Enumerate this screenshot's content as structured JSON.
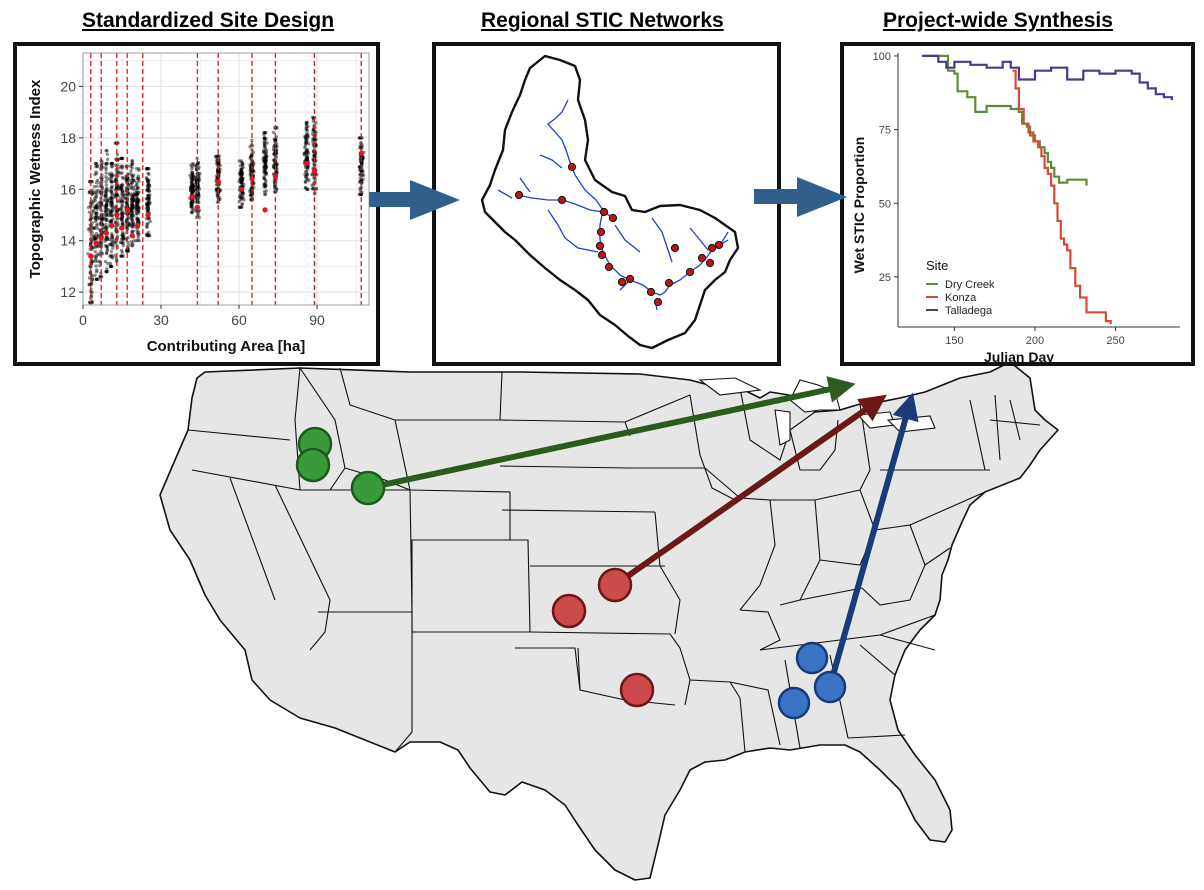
{
  "colors": {
    "dry_creek": "#3a9a3a",
    "dry_creek_arrow": "#2d5a1e",
    "konza": "#cc4a4a",
    "konza_arrow": "#6b1818",
    "talladega": "#3a72c4",
    "talladega_arrow": "#1a3a7a",
    "flow_arrow": "#2f5f8a",
    "stream": "#1f3fd0",
    "map_fill": "#e6e6e6"
  },
  "panels": {
    "site_design": {
      "title": "Standardized Site Design"
    },
    "networks": {
      "title": "Regional STIC Networks"
    },
    "synthesis": {
      "title": "Project-wide Synthesis"
    }
  },
  "chart_data": [
    {
      "type": "scatter",
      "xlabel": "Contributing Area [ha]",
      "ylabel": "Topographic Wetness Index",
      "xlim": [
        0,
        110
      ],
      "ylim": [
        11.5,
        21.3
      ],
      "xticks": [
        "0",
        "30",
        "60",
        "90"
      ],
      "yticks": [
        "12",
        "14",
        "16",
        "18",
        "20"
      ],
      "reference_lines_x": [
        3,
        7,
        13,
        17,
        23,
        44,
        52,
        65,
        74,
        89,
        107
      ],
      "clusters": [
        {
          "x": 3,
          "y_min": 11.6,
          "y_max": 16.3,
          "selected_y": 13.4
        },
        {
          "x": 5,
          "y_min": 12.5,
          "y_max": 17.0,
          "selected_y": 13.9
        },
        {
          "x": 7,
          "y_min": 12.6,
          "y_max": 17.1,
          "selected_y": 14.1
        },
        {
          "x": 9,
          "y_min": 12.8,
          "y_max": 17.5,
          "selected_y": 14.3
        },
        {
          "x": 11,
          "y_min": 13.0,
          "y_max": 17.0,
          "selected_y": 14.6
        },
        {
          "x": 13,
          "y_min": 13.2,
          "y_max": 17.8,
          "selected_y": 15.0
        },
        {
          "x": 15,
          "y_min": 13.4,
          "y_max": 17.2,
          "selected_y": 14.5
        },
        {
          "x": 17,
          "y_min": 13.6,
          "y_max": 16.9,
          "selected_y": 15.2
        },
        {
          "x": 19,
          "y_min": 13.8,
          "y_max": 17.1,
          "selected_y": 14.2
        },
        {
          "x": 21,
          "y_min": 14.0,
          "y_max": 16.8,
          "selected_y": 14.6
        },
        {
          "x": 25,
          "y_min": 14.2,
          "y_max": 16.8,
          "selected_y": 15.0
        },
        {
          "x": 42,
          "y_min": 15.1,
          "y_max": 17.0,
          "selected_y": 15.7
        },
        {
          "x": 44,
          "y_min": 14.9,
          "y_max": 17.2,
          "selected_y": 15.3
        },
        {
          "x": 52,
          "y_min": 15.5,
          "y_max": 17.3,
          "selected_y": 16.3
        },
        {
          "x": 61,
          "y_min": 15.3,
          "y_max": 17.1,
          "selected_y": 16.0
        },
        {
          "x": 65,
          "y_min": 15.6,
          "y_max": 17.9,
          "selected_y": 16.4
        },
        {
          "x": 70,
          "y_min": 15.8,
          "y_max": 18.2,
          "selected_y": 15.2
        },
        {
          "x": 74,
          "y_min": 15.9,
          "y_max": 18.4,
          "selected_y": 16.5
        },
        {
          "x": 86,
          "y_min": 16.0,
          "y_max": 18.6,
          "selected_y": 17.0
        },
        {
          "x": 89,
          "y_min": 15.8,
          "y_max": 18.8,
          "selected_y": 16.7
        },
        {
          "x": 107,
          "y_min": 15.8,
          "y_max": 18.0,
          "selected_y": 17.4
        }
      ]
    },
    {
      "type": "line",
      "xlabel": "Julian Day",
      "ylabel": "Wet STIC Proportion",
      "xlim": [
        115,
        290
      ],
      "ylim": [
        8,
        101
      ],
      "xticks": [
        "150",
        "200",
        "250"
      ],
      "yticks": [
        "25",
        "50",
        "75",
        "100"
      ],
      "legend_title": "Site",
      "legend_position": "lower-left",
      "series": [
        {
          "name": "Dry Creek",
          "color": "#5e8c3a",
          "x": [
            130,
            143,
            146,
            150,
            152,
            158,
            160,
            163,
            165,
            170,
            175,
            180,
            185,
            190,
            192,
            195,
            197,
            200,
            203,
            206,
            208,
            210,
            212,
            215,
            220,
            225,
            230,
            232
          ],
          "y": [
            100,
            100,
            95,
            94,
            88,
            86,
            86,
            81,
            81,
            83,
            83,
            83,
            82,
            81,
            77,
            76,
            73,
            71,
            69,
            67,
            64,
            62,
            59,
            57,
            58,
            58,
            58,
            56
          ]
        },
        {
          "name": "Konza",
          "color": "#d64b34",
          "x": [
            186,
            188,
            190,
            193,
            196,
            199,
            202,
            204,
            206,
            208,
            210,
            212,
            214,
            216,
            218,
            220,
            222,
            225,
            228,
            232,
            236,
            240,
            244,
            247
          ],
          "y": [
            95,
            89,
            82,
            77,
            74,
            71,
            69,
            66,
            62,
            60,
            56,
            50,
            44,
            38,
            36,
            34,
            28,
            22,
            18,
            13,
            13,
            13,
            10,
            9
          ]
        },
        {
          "name": "Talladega",
          "color": "#4b3a8c",
          "x": [
            130,
            140,
            145,
            150,
            160,
            170,
            180,
            185,
            190,
            200,
            210,
            220,
            230,
            240,
            250,
            260,
            265,
            270,
            275,
            280,
            285
          ],
          "y": [
            100,
            98,
            96,
            98,
            97,
            96,
            98,
            96,
            92,
            95,
            96,
            92,
            95,
            94,
            95,
            94,
            91,
            89,
            87,
            86,
            85
          ]
        }
      ]
    }
  ]
}
